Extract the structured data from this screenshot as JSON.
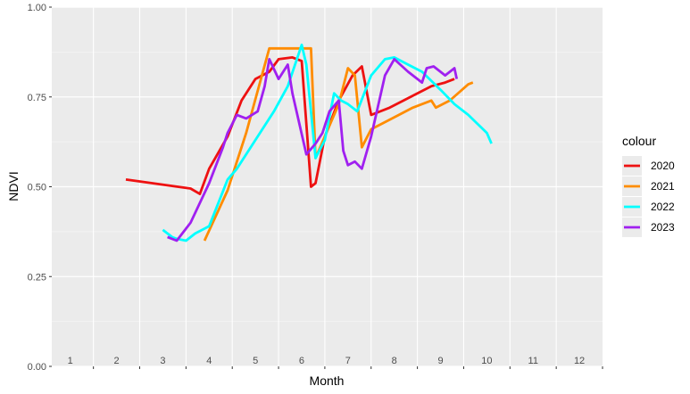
{
  "chart_data": {
    "type": "line",
    "xlabel": "Month",
    "ylabel": "NDVI",
    "xlim": [
      0.6,
      12.5
    ],
    "ylim": [
      0,
      1
    ],
    "x_tick_labels": [
      "1",
      "2",
      "3",
      "4",
      "5",
      "6",
      "7",
      "8",
      "9",
      "10",
      "11",
      "12"
    ],
    "y_ticks": [
      0,
      0.25,
      0.5,
      0.75,
      1
    ],
    "y_tick_labels": [
      "0.00",
      "0.25",
      "0.50",
      "0.75",
      "1.00"
    ],
    "grid": true,
    "legend": {
      "title": "colour",
      "placement": "right"
    },
    "series": [
      {
        "name": "2020",
        "color": "#ee1111",
        "x": [
          2.2,
          3.6,
          3.8,
          4.0,
          4.4,
          4.7,
          5.0,
          5.3,
          5.5,
          5.8,
          6.0,
          6.2,
          6.3,
          6.5,
          6.8,
          7.1,
          7.3,
          7.5,
          7.9,
          8.2,
          8.5,
          8.8,
          9.1,
          9.3
        ],
        "y": [
          0.52,
          0.495,
          0.48,
          0.55,
          0.64,
          0.74,
          0.8,
          0.82,
          0.855,
          0.86,
          0.85,
          0.5,
          0.51,
          0.64,
          0.74,
          0.81,
          0.835,
          0.7,
          0.72,
          0.74,
          0.76,
          0.78,
          0.79,
          0.8
        ]
      },
      {
        "name": "2021",
        "color": "#ff8c00",
        "x": [
          3.9,
          4.4,
          4.8,
          5.3,
          6.1,
          6.2,
          6.3,
          6.5,
          6.8,
          7.0,
          7.15,
          7.3,
          7.5,
          7.8,
          8.1,
          8.4,
          8.8,
          8.9,
          9.2,
          9.6,
          9.7
        ],
        "y": [
          0.35,
          0.49,
          0.65,
          0.885,
          0.885,
          0.885,
          0.58,
          0.64,
          0.73,
          0.83,
          0.81,
          0.61,
          0.66,
          0.68,
          0.7,
          0.72,
          0.74,
          0.72,
          0.74,
          0.785,
          0.79
        ],
        "extra_x": [],
        "extra_y": []
      },
      {
        "name": "2022",
        "color": "#00ffff",
        "x": [
          3.0,
          3.2,
          3.3,
          3.5,
          3.7,
          4.0,
          4.4,
          4.6,
          5.0,
          5.4,
          5.7,
          6.0,
          6.1,
          6.3,
          6.5,
          6.7,
          6.85,
          7.0,
          7.2,
          7.5,
          7.8,
          8.0,
          8.3,
          8.6,
          9.0,
          9.3,
          9.6,
          10.0,
          10.1
        ],
        "y": [
          0.38,
          0.36,
          0.355,
          0.35,
          0.37,
          0.39,
          0.52,
          0.55,
          0.63,
          0.71,
          0.78,
          0.895,
          0.84,
          0.58,
          0.63,
          0.76,
          0.74,
          0.73,
          0.71,
          0.81,
          0.855,
          0.86,
          0.84,
          0.82,
          0.77,
          0.73,
          0.7,
          0.65,
          0.62
        ]
      },
      {
        "name": "2023",
        "color": "#a020f0",
        "x": [
          3.1,
          3.3,
          3.6,
          4.0,
          4.3,
          4.4,
          4.6,
          4.8,
          5.05,
          5.2,
          5.3,
          5.5,
          5.7,
          5.8,
          6.1,
          6.3,
          6.45,
          6.6,
          6.8,
          6.9,
          7.0,
          7.15,
          7.3,
          7.5,
          7.8,
          8.0,
          8.3,
          8.6,
          8.7,
          8.85,
          9.1,
          9.3,
          9.35
        ],
        "y": [
          0.36,
          0.35,
          0.4,
          0.51,
          0.61,
          0.65,
          0.7,
          0.69,
          0.71,
          0.78,
          0.855,
          0.8,
          0.84,
          0.76,
          0.59,
          0.62,
          0.65,
          0.71,
          0.74,
          0.6,
          0.56,
          0.57,
          0.55,
          0.64,
          0.81,
          0.855,
          0.82,
          0.79,
          0.83,
          0.835,
          0.81,
          0.83,
          0.8
        ]
      }
    ]
  }
}
